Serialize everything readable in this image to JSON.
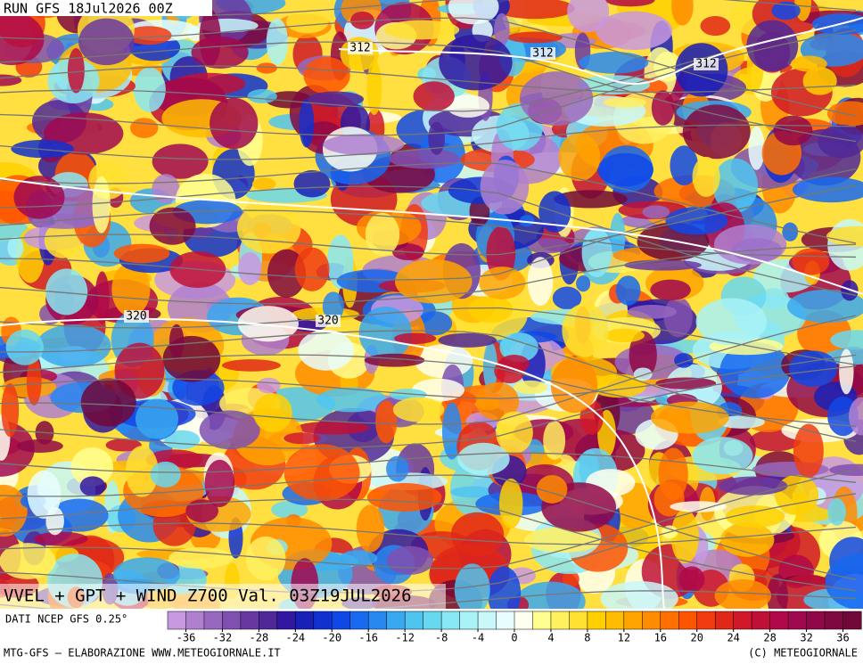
{
  "header": "RUN GFS 18Jul2026 00Z",
  "contour_labels": [
    "312",
    "312",
    "312",
    "320",
    "320"
  ],
  "title": "VVEL + GPT + WIND Z700 Val. 03Z19JUL2026",
  "source": "DATI NCEP GFS 0.25°",
  "footer_left": "MTG-GFS – ELABORAZIONE WWW.METEOGIORNALE.IT",
  "footer_right": "(C) METEOGIORNALE",
  "colorbar": {
    "clim": [
      -38,
      38
    ],
    "ticks": [
      -36,
      -32,
      -28,
      -24,
      -20,
      -16,
      -12,
      -8,
      -4,
      0,
      4,
      8,
      12,
      16,
      20,
      24,
      28,
      32,
      36
    ],
    "colors": [
      "#c898e0",
      "#b080d0",
      "#9868c0",
      "#8050b0",
      "#6838a0",
      "#502898",
      "#3018a0",
      "#1820b8",
      "#1030d0",
      "#1048e8",
      "#1868f0",
      "#2888f0",
      "#38a8f0",
      "#50c4f0",
      "#68d8f0",
      "#88e8f4",
      "#a8f2f8",
      "#c8f8fa",
      "#e8fefe",
      "#fffff0",
      "#ffff90",
      "#fff060",
      "#ffe030",
      "#ffd000",
      "#ffbc00",
      "#ffa400",
      "#ff8c00",
      "#ff7000",
      "#ff5400",
      "#f03c10",
      "#e02818",
      "#d01828",
      "#c01038",
      "#b00848",
      "#a00850",
      "#900848",
      "#800840",
      "#700838"
    ]
  }
}
